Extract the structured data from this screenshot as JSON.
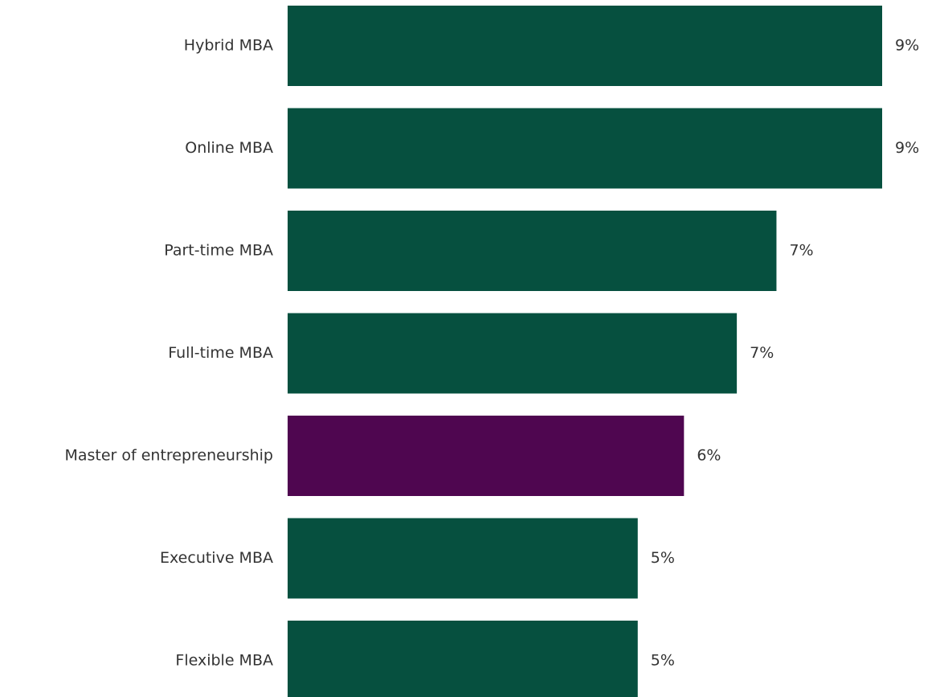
{
  "chart_data": {
    "type": "bar",
    "orientation": "horizontal",
    "categories": [
      "Hybrid MBA",
      "Online MBA",
      "Part-time MBA",
      "Full-time MBA",
      "Master of entrepreneurship",
      "Executive MBA",
      "Flexible MBA"
    ],
    "values": [
      9.0,
      9.0,
      7.4,
      6.8,
      6.0,
      5.3,
      5.3
    ],
    "value_labels": [
      "9%",
      "9%",
      "7%",
      "7%",
      "6%",
      "5%",
      "5%"
    ],
    "colors": [
      "#06503f",
      "#06503f",
      "#06503f",
      "#06503f",
      "#4f0650",
      "#06503f",
      "#06503f"
    ]
  }
}
